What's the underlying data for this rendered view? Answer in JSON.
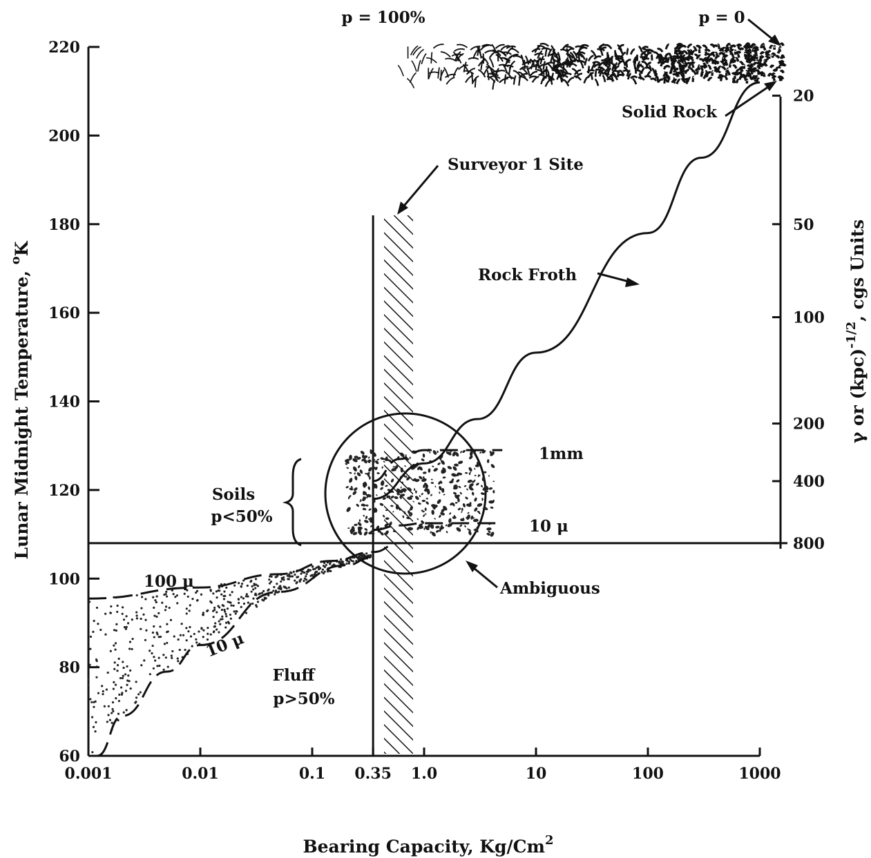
{
  "chart_data": {
    "type": "line",
    "x_scale": "log",
    "xlim": [
      0.001,
      1000
    ],
    "ylim": [
      60,
      220
    ],
    "xlabel": "Bearing Capacity, Kg/Cm",
    "xlabel_sup": "2",
    "ylabel": "Lunar Midnight Temperature, ",
    "ylabel_sup": "o",
    "ylabel_sub": "K",
    "y2label_pre": "γ or (kpc)",
    "y2label_sup": "-1/2",
    "y2label_post": ", cgs Units",
    "x_ticks": [
      {
        "value": 0.001,
        "label": "0.001"
      },
      {
        "value": 0.01,
        "label": "0.01"
      },
      {
        "value": 0.1,
        "label": "0.1"
      },
      {
        "value": 0.35,
        "label": "0.35"
      },
      {
        "value": 1.0,
        "label": "1.0"
      },
      {
        "value": 10,
        "label": "10"
      },
      {
        "value": 100,
        "label": "100"
      },
      {
        "value": 1000,
        "label": "1000"
      }
    ],
    "y_ticks": [
      {
        "value": 60,
        "label": "60"
      },
      {
        "value": 80,
        "label": "80"
      },
      {
        "value": 100,
        "label": "100"
      },
      {
        "value": 120,
        "label": "120"
      },
      {
        "value": 140,
        "label": "140"
      },
      {
        "value": 160,
        "label": "160"
      },
      {
        "value": 180,
        "label": "180"
      },
      {
        "value": 200,
        "label": "200"
      },
      {
        "value": 220,
        "label": "220"
      }
    ],
    "y2_ticks": [
      {
        "temp": 209,
        "label": "20"
      },
      {
        "temp": 180,
        "label": "50"
      },
      {
        "temp": 159,
        "label": "100"
      },
      {
        "temp": 135,
        "label": "200"
      },
      {
        "temp": 122,
        "label": "400"
      },
      {
        "temp": 108,
        "label": "800"
      }
    ],
    "top_labels": [
      {
        "x": 0.35,
        "label": "p = 100%"
      },
      {
        "x": 1000,
        "label": "p = 0"
      }
    ],
    "reference_lines": {
      "horizontal_temp": 108,
      "surveyor_bearing_capacity": 0.35,
      "surveyor_label": "Surveyor 1 Site"
    },
    "series": [
      {
        "name": "Rock Froth",
        "style": "solid",
        "points": [
          [
            0.35,
            118
          ],
          [
            1.0,
            126
          ],
          [
            3,
            136
          ],
          [
            10,
            151
          ],
          [
            100,
            178
          ],
          [
            300,
            195
          ],
          [
            1000,
            212
          ]
        ]
      },
      {
        "name": "1mm",
        "style": "dashed",
        "points": [
          [
            0.35,
            122
          ],
          [
            0.6,
            127
          ],
          [
            1.0,
            129
          ],
          [
            5,
            129
          ]
        ]
      },
      {
        "name": "10 μ",
        "style": "dashed",
        "points": [
          [
            0.35,
            111
          ],
          [
            0.6,
            112
          ],
          [
            1.0,
            112.5
          ],
          [
            5,
            112.5
          ]
        ]
      },
      {
        "name": "100 μ",
        "style": "dashed",
        "points": [
          [
            0.001,
            95.5
          ],
          [
            0.01,
            98
          ],
          [
            0.05,
            101
          ],
          [
            0.15,
            104
          ],
          [
            0.35,
            106
          ],
          [
            0.6,
            108
          ]
        ]
      },
      {
        "name": "10 μ",
        "style": "dashed",
        "points": [
          [
            0.0012,
            60
          ],
          [
            0.002,
            69
          ],
          [
            0.005,
            79
          ],
          [
            0.01,
            85
          ],
          [
            0.05,
            97
          ],
          [
            0.2,
            103
          ],
          [
            0.35,
            105
          ]
        ]
      }
    ],
    "annotations": [
      {
        "text": "Solid Rock"
      },
      {
        "text": "Rock Froth"
      },
      {
        "text": "Surveyor 1 Site"
      },
      {
        "text": "Ambiguous"
      },
      {
        "text": "1mm"
      },
      {
        "text": "10 μ"
      },
      {
        "text": "100 μ"
      },
      {
        "text": "10 μ"
      },
      {
        "text": "Soils"
      },
      {
        "text": "p<50%"
      },
      {
        "text": "Fluff"
      },
      {
        "text": "p>50%"
      }
    ],
    "ambiguous_region": {
      "center": [
        0.45,
        120
      ],
      "label": "Ambiguous"
    },
    "grid": false,
    "legend": "none"
  }
}
